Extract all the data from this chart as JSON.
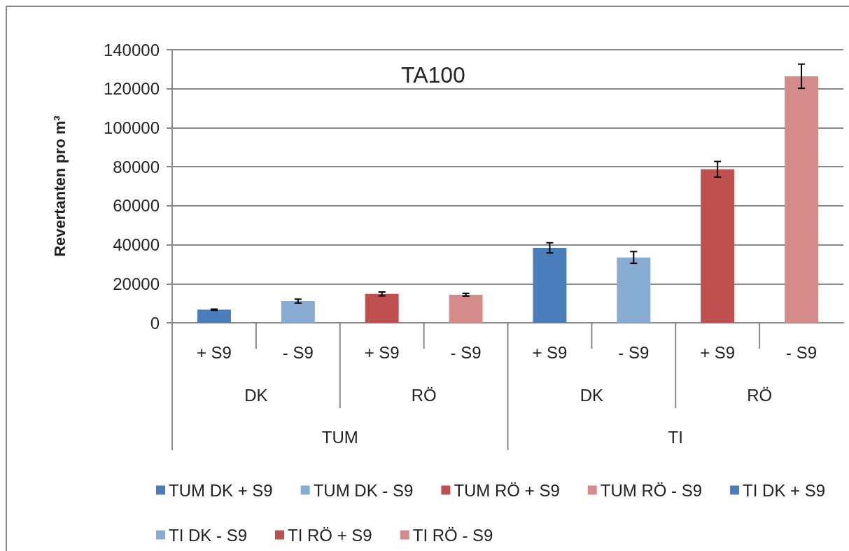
{
  "chart_data": {
    "type": "bar",
    "title": "TA100",
    "ylabel": "Revertanten pro m³",
    "categories": [
      "+ S9",
      "- S9",
      "+ S9",
      "- S9",
      "+ S9",
      "- S9",
      "+ S9",
      "- S9"
    ],
    "annotations": [
      "DK",
      "RÖ",
      "DK",
      "RÖ",
      "TUM",
      "TI"
    ],
    "series": [
      {
        "name": "TUM DK + S9",
        "color": "#4a7ebb",
        "values": [
          6700,
          null,
          null,
          null,
          null,
          null,
          null,
          null
        ],
        "errors": [
          300,
          null,
          null,
          null,
          null,
          null,
          null,
          null
        ]
      },
      {
        "name": "TUM DK - S9",
        "color": "#88acd1",
        "values": [
          null,
          11100,
          null,
          null,
          null,
          null,
          null,
          null
        ],
        "errors": [
          null,
          1000,
          null,
          null,
          null,
          null,
          null,
          null
        ]
      },
      {
        "name": "TUM RÖ + S9",
        "color": "#be5150",
        "values": [
          null,
          null,
          14800,
          null,
          null,
          null,
          null,
          null
        ],
        "errors": [
          null,
          null,
          1000,
          null,
          null,
          null,
          null,
          null
        ]
      },
      {
        "name": "TUM RÖ - S9",
        "color": "#d48b8a",
        "values": [
          null,
          null,
          null,
          14400,
          null,
          null,
          null,
          null
        ],
        "errors": [
          null,
          null,
          null,
          700,
          null,
          null,
          null,
          null
        ]
      },
      {
        "name": "TI DK + S9",
        "color": "#4a7ebb",
        "values": [
          null,
          null,
          null,
          null,
          38400,
          null,
          null,
          null
        ],
        "errors": [
          null,
          null,
          null,
          null,
          2600,
          null,
          null,
          null
        ]
      },
      {
        "name": "TI DK - S9",
        "color": "#88acd1",
        "values": [
          null,
          null,
          null,
          null,
          null,
          33500,
          null,
          null
        ],
        "errors": [
          null,
          null,
          null,
          null,
          null,
          3000,
          null,
          null
        ]
      },
      {
        "name": "TI RÖ + S9",
        "color": "#be5150",
        "values": [
          null,
          null,
          null,
          null,
          null,
          null,
          78700,
          null
        ],
        "errors": [
          null,
          null,
          null,
          null,
          null,
          null,
          4000,
          null
        ]
      },
      {
        "name": "TI RÖ - S9",
        "color": "#d48b8a",
        "values": [
          null,
          null,
          null,
          null,
          null,
          null,
          null,
          126400
        ],
        "errors": [
          null,
          null,
          null,
          null,
          null,
          null,
          null,
          6200
        ]
      }
    ],
    "ylim": [
      0,
      140000
    ],
    "yticks": [
      0,
      20000,
      40000,
      60000,
      80000,
      100000,
      120000,
      140000
    ],
    "grid": "y",
    "legend": "bottom"
  }
}
